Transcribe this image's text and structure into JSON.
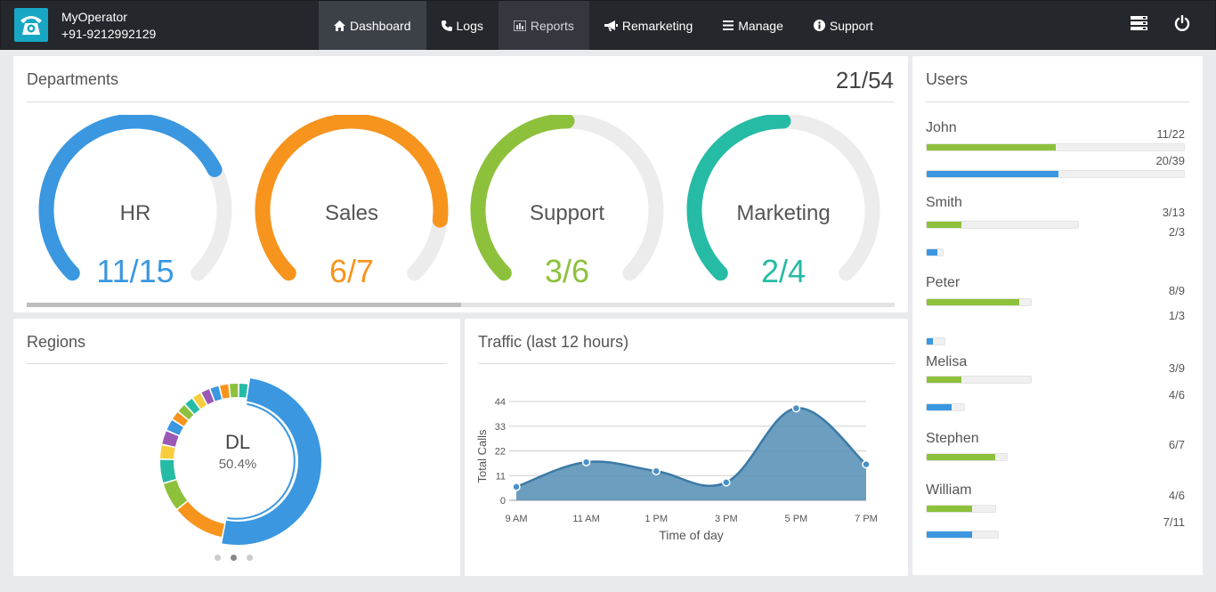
{
  "app": {
    "name": "MyOperator",
    "phone": "+91-9212992129"
  },
  "nav": [
    {
      "label": "Dashboard",
      "icon": "home-icon"
    },
    {
      "label": "Logs",
      "icon": "phone-icon"
    },
    {
      "label": "Reports",
      "icon": "bar-chart-icon"
    },
    {
      "label": "Remarketing",
      "icon": "bullhorn-icon"
    },
    {
      "label": "Manage",
      "icon": "list-icon"
    },
    {
      "label": "Support",
      "icon": "info-icon"
    }
  ],
  "departments": {
    "title": "Departments",
    "total": "21/54",
    "items": [
      {
        "label": "HR",
        "value": "11/15",
        "fraction": 0.733,
        "color": "#3a97e0"
      },
      {
        "label": "Sales",
        "value": "6/7",
        "fraction": 0.857,
        "color": "#f7941d"
      },
      {
        "label": "Support",
        "value": "3/6",
        "fraction": 0.5,
        "color": "#8dc13c"
      },
      {
        "label": "Marketing",
        "value": "2/4",
        "fraction": 0.5,
        "color": "#26bba5"
      }
    ]
  },
  "regions": {
    "title": "Regions",
    "center_label": "DL",
    "center_value": "50.4%",
    "slices": [
      {
        "value": 50.4,
        "color": "#3a97e0"
      },
      {
        "value": 11,
        "color": "#f7941d"
      },
      {
        "value": 6,
        "color": "#8dc13c"
      },
      {
        "value": 5,
        "color": "#26bba5"
      },
      {
        "value": 3,
        "color": "#f8cd3c"
      },
      {
        "value": 3,
        "color": "#9b59b6"
      },
      {
        "value": 2.5,
        "color": "#3a97e0"
      },
      {
        "value": 2,
        "color": "#f7941d"
      },
      {
        "value": 2,
        "color": "#8dc13c"
      },
      {
        "value": 2,
        "color": "#26bba5"
      },
      {
        "value": 2,
        "color": "#f8cd3c"
      },
      {
        "value": 2,
        "color": "#9b59b6"
      },
      {
        "value": 2,
        "color": "#3a97e0"
      },
      {
        "value": 2,
        "color": "#f7941d"
      },
      {
        "value": 2,
        "color": "#8dc13c"
      },
      {
        "value": 2,
        "color": "#26bba5"
      }
    ]
  },
  "traffic": {
    "title": "Traffic (last 12 hours)",
    "chart_data": {
      "type": "area",
      "x": [
        "9 AM",
        "11 AM",
        "1 PM",
        "3 PM",
        "5 PM",
        "7 PM"
      ],
      "values": [
        6,
        17,
        13,
        8,
        41,
        16
      ],
      "yticks": [
        0,
        11,
        22,
        33,
        44
      ],
      "ylim": [
        0,
        44
      ],
      "xlabel": "Time of day",
      "ylabel": "Total Calls",
      "color": "#5b94b8"
    }
  },
  "users": {
    "title": "Users",
    "list": [
      {
        "name": "John",
        "green": {
          "label": "11/22",
          "fraction": 0.5
        },
        "blue": {
          "label": "20/39",
          "fraction": 0.513
        }
      },
      {
        "name": "Smith",
        "green": {
          "label": "3/13",
          "fraction": 0.231
        },
        "blue": {
          "label": "2/3",
          "fraction": 0.667
        }
      },
      {
        "name": "Peter",
        "green": {
          "label": "8/9",
          "fraction": 0.889
        },
        "blue": {
          "label": "1/3",
          "fraction": 0.333
        }
      },
      {
        "name": "Melisa",
        "green": {
          "label": "3/9",
          "fraction": 0.333
        },
        "blue": {
          "label": "4/6",
          "fraction": 0.667
        }
      },
      {
        "name": "Stephen",
        "green": {
          "label": "6/7",
          "fraction": 0.857
        }
      },
      {
        "name": "William",
        "green": {
          "label": "4/6",
          "fraction": 0.667
        },
        "blue": {
          "label": "7/11",
          "fraction": 0.636
        }
      }
    ]
  }
}
